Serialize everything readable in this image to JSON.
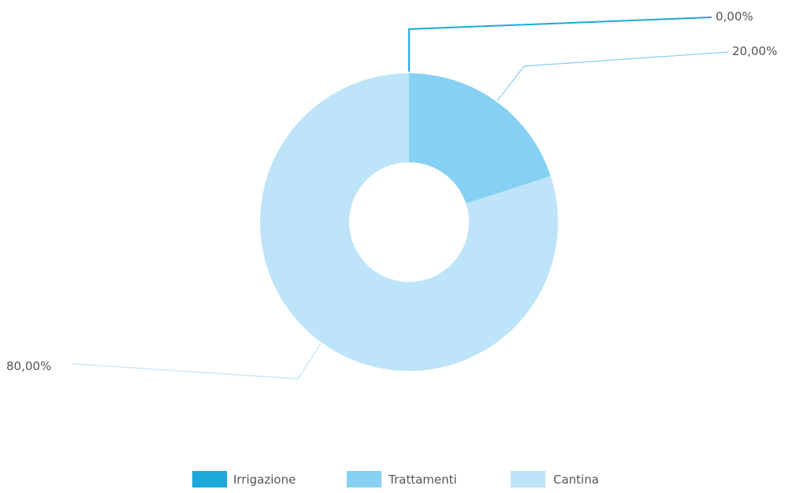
{
  "chart_data": {
    "type": "pie",
    "variant": "donut",
    "title": "",
    "categories": [
      "Irrigazione",
      "Trattamenti",
      "Cantina"
    ],
    "values": [
      0,
      20,
      80
    ],
    "labels": [
      "0,00%",
      "20,00%",
      "80,00%"
    ],
    "colors": [
      "#1BA9DA",
      "#86D0F3",
      "#BDE4F8"
    ],
    "legend": "bottom-center"
  }
}
